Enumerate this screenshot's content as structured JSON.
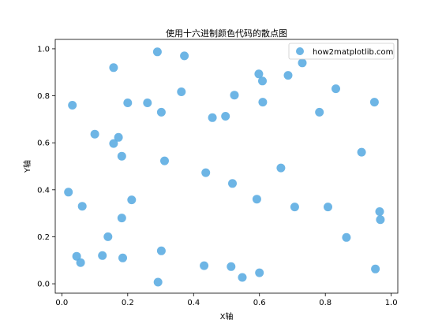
{
  "chart_data": {
    "type": "scatter",
    "title": "使用十六进制颜色代码的散点图",
    "xlabel": "X轴",
    "ylabel": "Y轴",
    "xlim": [
      -0.02,
      1.02
    ],
    "ylim": [
      -0.04,
      1.04
    ],
    "xticks": [
      "0.0",
      "0.2",
      "0.4",
      "0.6",
      "0.8",
      "1.0"
    ],
    "yticks": [
      "0.0",
      "0.2",
      "0.4",
      "0.6",
      "0.8",
      "1.0"
    ],
    "grid": false,
    "legend": {
      "position": "top-right"
    },
    "series": [
      {
        "name": "how2matplotlib.com",
        "color": "#5DADE2",
        "points": [
          {
            "x": 0.29,
            "y": 0.987
          },
          {
            "x": 0.372,
            "y": 0.97
          },
          {
            "x": 0.157,
            "y": 0.92
          },
          {
            "x": 0.598,
            "y": 0.893
          },
          {
            "x": 0.609,
            "y": 0.863
          },
          {
            "x": 0.687,
            "y": 0.887
          },
          {
            "x": 0.73,
            "y": 0.94
          },
          {
            "x": 0.832,
            "y": 0.83
          },
          {
            "x": 0.363,
            "y": 0.817
          },
          {
            "x": 0.524,
            "y": 0.803
          },
          {
            "x": 0.949,
            "y": 0.773
          },
          {
            "x": 0.032,
            "y": 0.76
          },
          {
            "x": 0.2,
            "y": 0.77
          },
          {
            "x": 0.26,
            "y": 0.77
          },
          {
            "x": 0.61,
            "y": 0.773
          },
          {
            "x": 0.302,
            "y": 0.73
          },
          {
            "x": 0.457,
            "y": 0.707
          },
          {
            "x": 0.497,
            "y": 0.713
          },
          {
            "x": 0.782,
            "y": 0.73
          },
          {
            "x": 0.1,
            "y": 0.637
          },
          {
            "x": 0.172,
            "y": 0.623
          },
          {
            "x": 0.157,
            "y": 0.597
          },
          {
            "x": 0.182,
            "y": 0.543
          },
          {
            "x": 0.312,
            "y": 0.523
          },
          {
            "x": 0.437,
            "y": 0.473
          },
          {
            "x": 0.665,
            "y": 0.493
          },
          {
            "x": 0.91,
            "y": 0.56
          },
          {
            "x": 0.02,
            "y": 0.39
          },
          {
            "x": 0.518,
            "y": 0.427
          },
          {
            "x": 0.062,
            "y": 0.33
          },
          {
            "x": 0.212,
            "y": 0.357
          },
          {
            "x": 0.592,
            "y": 0.36
          },
          {
            "x": 0.707,
            "y": 0.327
          },
          {
            "x": 0.808,
            "y": 0.327
          },
          {
            "x": 0.965,
            "y": 0.307
          },
          {
            "x": 0.182,
            "y": 0.28
          },
          {
            "x": 0.967,
            "y": 0.273
          },
          {
            "x": 0.14,
            "y": 0.2
          },
          {
            "x": 0.864,
            "y": 0.197
          },
          {
            "x": 0.045,
            "y": 0.117
          },
          {
            "x": 0.123,
            "y": 0.12
          },
          {
            "x": 0.185,
            "y": 0.11
          },
          {
            "x": 0.302,
            "y": 0.14
          },
          {
            "x": 0.057,
            "y": 0.09
          },
          {
            "x": 0.432,
            "y": 0.077
          },
          {
            "x": 0.514,
            "y": 0.073
          },
          {
            "x": 0.548,
            "y": 0.027
          },
          {
            "x": 0.6,
            "y": 0.047
          },
          {
            "x": 0.292,
            "y": 0.007
          },
          {
            "x": 0.952,
            "y": 0.063
          }
        ]
      }
    ]
  }
}
